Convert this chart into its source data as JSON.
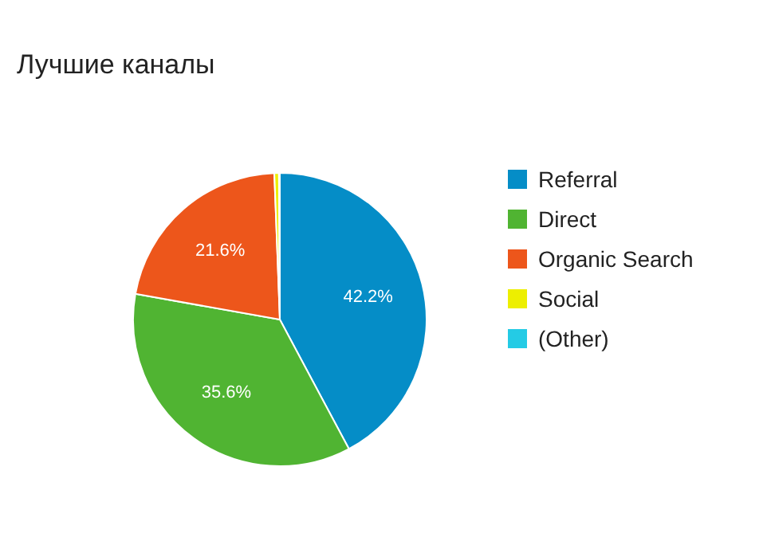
{
  "chart_data": {
    "type": "pie",
    "title": "Лучшие каналы",
    "categories": [
      "Referral",
      "Direct",
      "Organic Search",
      "Social",
      "(Other)"
    ],
    "values": [
      42.2,
      35.6,
      21.6,
      0.5,
      0.1
    ],
    "colors": [
      "#058dc7",
      "#50b432",
      "#ed561b",
      "#edef00",
      "#24cbe5"
    ],
    "value_labels": [
      "42.2%",
      "35.6%",
      "21.6%",
      null,
      null
    ],
    "legend": "right"
  }
}
